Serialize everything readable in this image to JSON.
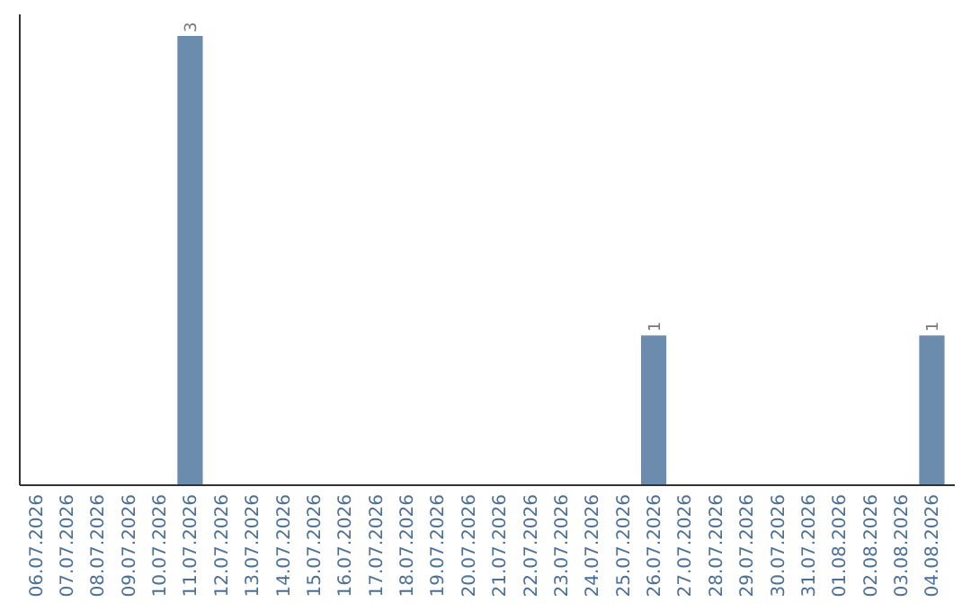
{
  "chart_data": {
    "type": "bar",
    "categories": [
      "06.07.2026",
      "07.07.2026",
      "08.07.2026",
      "09.07.2026",
      "10.07.2026",
      "11.07.2026",
      "12.07.2026",
      "13.07.2026",
      "14.07.2026",
      "15.07.2026",
      "16.07.2026",
      "17.07.2026",
      "18.07.2026",
      "19.07.2026",
      "20.07.2026",
      "21.07.2026",
      "22.07.2026",
      "23.07.2026",
      "24.07.2026",
      "25.07.2026",
      "26.07.2026",
      "27.07.2026",
      "28.07.2026",
      "29.07.2026",
      "30.07.2026",
      "31.07.2026",
      "01.08.2026",
      "02.08.2026",
      "03.08.2026",
      "04.08.2026"
    ],
    "values": [
      0,
      0,
      0,
      0,
      0,
      3,
      0,
      0,
      0,
      0,
      0,
      0,
      0,
      0,
      0,
      0,
      0,
      0,
      0,
      0,
      1,
      0,
      0,
      0,
      0,
      0,
      0,
      0,
      0,
      1
    ],
    "value_labels": [
      null,
      null,
      null,
      null,
      null,
      "3",
      null,
      null,
      null,
      null,
      null,
      null,
      null,
      null,
      null,
      null,
      null,
      null,
      null,
      null,
      "1",
      null,
      null,
      null,
      null,
      null,
      null,
      null,
      null,
      "1"
    ],
    "color": "#6b8cac"
  }
}
